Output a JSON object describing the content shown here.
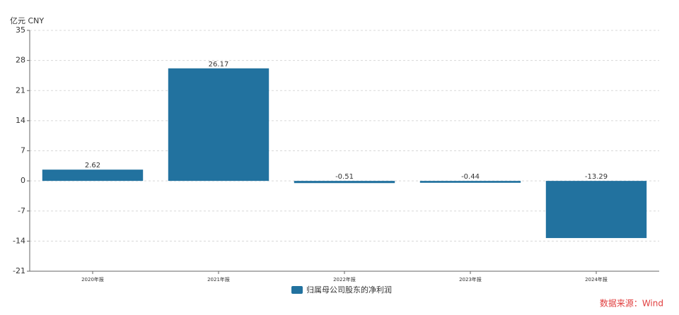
{
  "chart_data": {
    "type": "bar",
    "unit_label": "亿元  CNY",
    "categories": [
      "2020年报",
      "2021年报",
      "2022年报",
      "2023年报",
      "2024年报"
    ],
    "series": [
      {
        "name": "归属母公司股东的净利润",
        "color": "#22729f",
        "values": [
          2.62,
          26.17,
          -0.51,
          -0.44,
          -13.29
        ]
      }
    ],
    "ylim": [
      -21,
      35
    ],
    "yticks": [
      -21,
      -14,
      -7,
      0,
      7,
      14,
      21,
      28,
      35
    ],
    "grid": true,
    "source": "数据来源：Wind"
  }
}
